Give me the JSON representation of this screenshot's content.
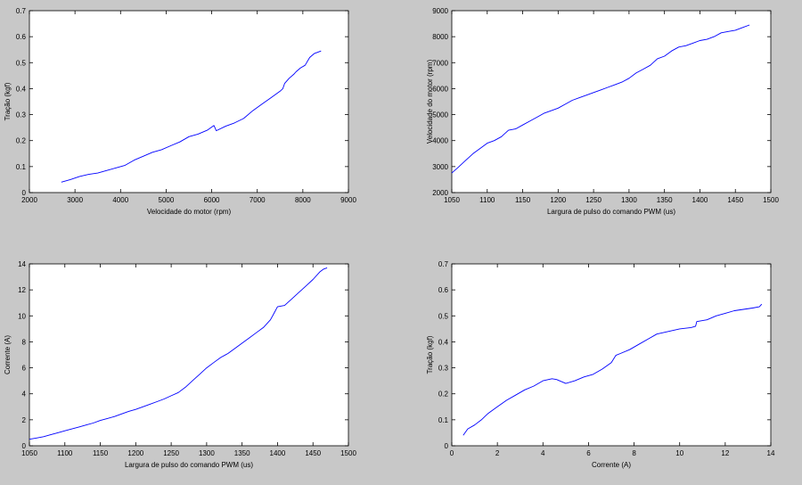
{
  "figure": {
    "background": "#c8c8c8",
    "axes_background": "#ffffff",
    "line_color": "#0000ff"
  },
  "chart_data": [
    {
      "id": "tracao-vs-velocidade",
      "type": "line",
      "title": "",
      "xlabel": "Velocidade do motor (rpm)",
      "ylabel": "Tração (kgf)",
      "xlim": [
        2000,
        9000
      ],
      "ylim": [
        0,
        0.7
      ],
      "xticks": [
        2000,
        3000,
        4000,
        5000,
        6000,
        7000,
        8000,
        9000
      ],
      "yticks": [
        0,
        0.1,
        0.2,
        0.3,
        0.4,
        0.5,
        0.6,
        0.7
      ],
      "grid": false,
      "series": [
        {
          "x": [
            2700,
            2900,
            3100,
            3300,
            3500,
            3700,
            3900,
            4100,
            4300,
            4500,
            4700,
            4900,
            5100,
            5300,
            5500,
            5700,
            5900,
            6050,
            6100,
            6300,
            6500,
            6700,
            6900,
            7100,
            7300,
            7500,
            7560,
            7600,
            7700,
            7800,
            7850,
            7950,
            8050,
            8150,
            8250,
            8400
          ],
          "y": [
            0.04,
            0.05,
            0.062,
            0.07,
            0.075,
            0.085,
            0.095,
            0.105,
            0.125,
            0.14,
            0.155,
            0.165,
            0.18,
            0.195,
            0.215,
            0.225,
            0.24,
            0.258,
            0.238,
            0.255,
            0.268,
            0.285,
            0.315,
            0.34,
            0.365,
            0.39,
            0.4,
            0.42,
            0.44,
            0.455,
            0.465,
            0.48,
            0.49,
            0.52,
            0.535,
            0.545
          ]
        }
      ]
    },
    {
      "id": "velocidade-vs-pwm",
      "type": "line",
      "title": "",
      "xlabel": "Largura de pulso do comando PWM (us)",
      "ylabel": "Velocidade do motor (rpm)",
      "xlim": [
        1050,
        1500
      ],
      "ylim": [
        2000,
        9000
      ],
      "xticks": [
        1050,
        1100,
        1150,
        1200,
        1250,
        1300,
        1350,
        1400,
        1450,
        1500
      ],
      "yticks": [
        2000,
        3000,
        4000,
        5000,
        6000,
        7000,
        8000,
        9000
      ],
      "grid": false,
      "series": [
        {
          "x": [
            1050,
            1060,
            1070,
            1080,
            1090,
            1100,
            1110,
            1120,
            1130,
            1140,
            1150,
            1160,
            1170,
            1180,
            1190,
            1200,
            1210,
            1220,
            1230,
            1240,
            1250,
            1260,
            1270,
            1280,
            1290,
            1300,
            1310,
            1320,
            1330,
            1340,
            1350,
            1360,
            1370,
            1380,
            1390,
            1400,
            1410,
            1420,
            1430,
            1440,
            1450,
            1460,
            1470
          ],
          "y": [
            2750,
            3000,
            3250,
            3500,
            3700,
            3900,
            4000,
            4150,
            4400,
            4450,
            4600,
            4750,
            4900,
            5050,
            5150,
            5250,
            5400,
            5550,
            5650,
            5750,
            5850,
            5950,
            6050,
            6150,
            6250,
            6400,
            6600,
            6750,
            6900,
            7150,
            7250,
            7450,
            7600,
            7650,
            7750,
            7850,
            7900,
            8000,
            8150,
            8200,
            8250,
            8350,
            8450
          ]
        }
      ]
    },
    {
      "id": "corrente-vs-pwm",
      "type": "line",
      "title": "",
      "xlabel": "Largura de pulso do comando PWM (us)",
      "ylabel": "Corrente (A)",
      "xlim": [
        1050,
        1500
      ],
      "ylim": [
        0,
        14
      ],
      "xticks": [
        1050,
        1100,
        1150,
        1200,
        1250,
        1300,
        1350,
        1400,
        1450,
        1500
      ],
      "yticks": [
        0,
        2,
        4,
        6,
        8,
        10,
        12,
        14
      ],
      "grid": false,
      "series": [
        {
          "x": [
            1050,
            1060,
            1070,
            1080,
            1090,
            1100,
            1110,
            1120,
            1130,
            1140,
            1150,
            1160,
            1170,
            1180,
            1190,
            1200,
            1210,
            1220,
            1230,
            1240,
            1250,
            1260,
            1270,
            1280,
            1290,
            1300,
            1310,
            1320,
            1330,
            1340,
            1350,
            1360,
            1370,
            1380,
            1390,
            1395,
            1400,
            1410,
            1420,
            1430,
            1440,
            1450,
            1460,
            1465,
            1470
          ],
          "y": [
            0.5,
            0.6,
            0.7,
            0.85,
            1.0,
            1.15,
            1.3,
            1.45,
            1.6,
            1.75,
            1.95,
            2.1,
            2.25,
            2.45,
            2.65,
            2.8,
            3.0,
            3.2,
            3.4,
            3.6,
            3.85,
            4.1,
            4.5,
            5.0,
            5.5,
            6.0,
            6.4,
            6.8,
            7.1,
            7.5,
            7.9,
            8.3,
            8.7,
            9.1,
            9.7,
            10.2,
            10.7,
            10.8,
            11.3,
            11.8,
            12.3,
            12.8,
            13.4,
            13.6,
            13.7
          ]
        }
      ]
    },
    {
      "id": "tracao-vs-corrente",
      "type": "line",
      "title": "",
      "xlabel": "Corrente (A)",
      "ylabel": "Tração (kgf)",
      "xlim": [
        0,
        14
      ],
      "ylim": [
        0,
        0.7
      ],
      "xticks": [
        0,
        2,
        4,
        6,
        8,
        10,
        12,
        14
      ],
      "yticks": [
        0,
        0.1,
        0.2,
        0.3,
        0.4,
        0.5,
        0.6,
        0.7
      ],
      "grid": false,
      "series": [
        {
          "x": [
            0.5,
            0.7,
            1.0,
            1.3,
            1.6,
            2.0,
            2.4,
            2.8,
            3.2,
            3.6,
            4.0,
            4.4,
            4.6,
            5.0,
            5.4,
            5.8,
            6.2,
            6.6,
            7.0,
            7.2,
            7.4,
            7.8,
            8.2,
            8.6,
            9.0,
            9.5,
            10.0,
            10.5,
            10.7,
            10.75,
            11.2,
            11.6,
            12.0,
            12.4,
            12.8,
            13.2,
            13.5,
            13.6
          ],
          "y": [
            0.04,
            0.065,
            0.08,
            0.1,
            0.125,
            0.15,
            0.175,
            0.195,
            0.215,
            0.23,
            0.25,
            0.258,
            0.255,
            0.24,
            0.25,
            0.265,
            0.275,
            0.295,
            0.32,
            0.348,
            0.355,
            0.37,
            0.39,
            0.41,
            0.43,
            0.44,
            0.45,
            0.455,
            0.46,
            0.478,
            0.485,
            0.5,
            0.51,
            0.52,
            0.525,
            0.53,
            0.535,
            0.545
          ]
        }
      ]
    }
  ]
}
